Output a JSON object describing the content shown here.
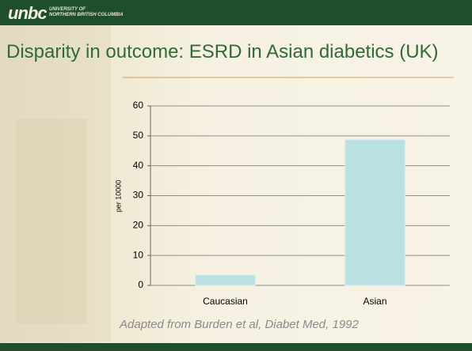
{
  "header": {
    "logo": "unbc",
    "university": [
      "UNIVERSITY OF",
      "NORTHERN BRITISH COLUMBIA"
    ]
  },
  "chart_data": {
    "type": "bar",
    "title": "Disparity in outcome: ESRD in Asian diabetics (UK)",
    "ylabel": "per 10000",
    "categories": [
      "Caucasian",
      "Asian"
    ],
    "values": [
      3.5,
      48.7
    ],
    "color": "#b9e1e1",
    "ylim": [
      0,
      60
    ],
    "yticks": [
      0,
      10,
      20,
      30,
      40,
      50,
      60
    ],
    "grid": true
  },
  "caption": "Adapted from Burden et al, Diabet Med, 1992"
}
